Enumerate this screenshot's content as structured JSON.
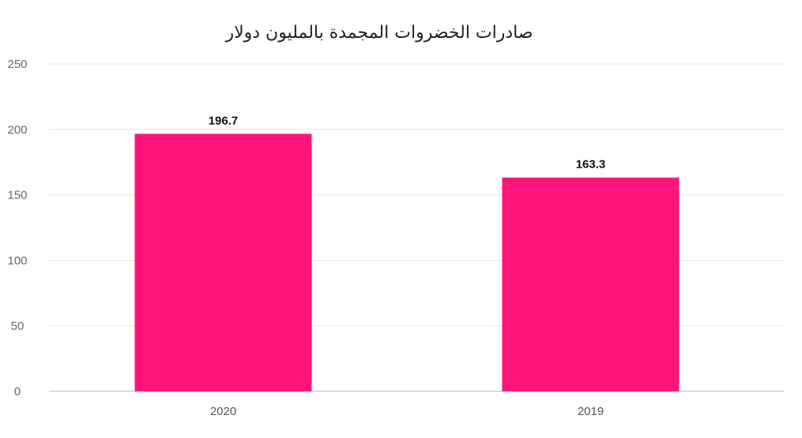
{
  "chart_data": {
    "type": "bar",
    "title": "صادرات الخضروات المجمدة بالمليون دولار",
    "xlabel": "",
    "ylabel": "",
    "categories": [
      "2020",
      "2019"
    ],
    "values": [
      196.7,
      163.3
    ],
    "data_labels": [
      "196.7",
      "163.3"
    ],
    "ylim": [
      0,
      250
    ],
    "yticks": [
      0,
      50,
      100,
      150,
      200,
      250
    ],
    "bar_color": "#ff1479",
    "grid": true
  }
}
